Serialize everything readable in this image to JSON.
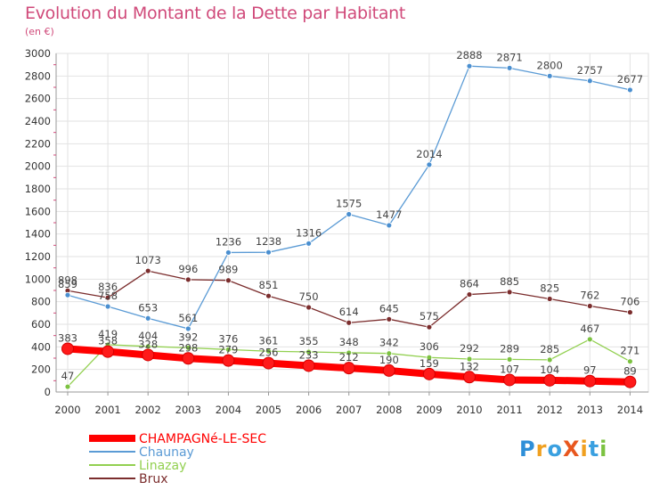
{
  "title": "Evolution du Montant de la Dette par Habitant",
  "subtitle": "(en €)",
  "logo": {
    "text": "ProXiti",
    "letters": [
      "P",
      "r",
      "o",
      "X",
      "i",
      "t",
      "i"
    ],
    "colors": [
      "#2f8fd8",
      "#f0a020",
      "#3aa0e0",
      "#e8571f",
      "#f0a020",
      "#3aa0e0",
      "#7cc241"
    ]
  },
  "chart_data": {
    "type": "line",
    "title": "Evolution du Montant de la Dette par Habitant",
    "subtitle": "(en €)",
    "x": [
      "2000",
      "2001",
      "2002",
      "2003",
      "2004",
      "2005",
      "2006",
      "2007",
      "2008",
      "2009",
      "2010",
      "2011",
      "2012",
      "2013",
      "2014"
    ],
    "yticks": [
      "0",
      "200",
      "400",
      "600",
      "800",
      "1000",
      "1200",
      "1400",
      "1600",
      "1800",
      "2000",
      "2200",
      "2400",
      "2600",
      "2800",
      "3000"
    ],
    "ylim": [
      0,
      3000
    ],
    "grid": true,
    "series": [
      {
        "name": "CHAMPAGNé-LE-SEC",
        "color": "#ff0000",
        "values": [
          383,
          358,
          328,
          298,
          279,
          256,
          233,
          212,
          190,
          159,
          132,
          107,
          104,
          97,
          89
        ]
      },
      {
        "name": "Chaunay",
        "color": "#5b9bd5",
        "values": [
          859,
          758,
          653,
          561,
          1236,
          1238,
          1316,
          1575,
          1477,
          2014,
          2888,
          2871,
          2800,
          2757,
          2677
        ]
      },
      {
        "name": "Linazay",
        "color": "#92d050",
        "values": [
          47,
          419,
          404,
          392,
          376,
          361,
          355,
          348,
          342,
          306,
          292,
          289,
          285,
          467,
          271
        ]
      },
      {
        "name": "Brux",
        "color": "#7b2d2d",
        "values": [
          898,
          836,
          1073,
          996,
          989,
          851,
          750,
          614,
          645,
          575,
          864,
          885,
          825,
          762,
          706
        ]
      }
    ]
  }
}
